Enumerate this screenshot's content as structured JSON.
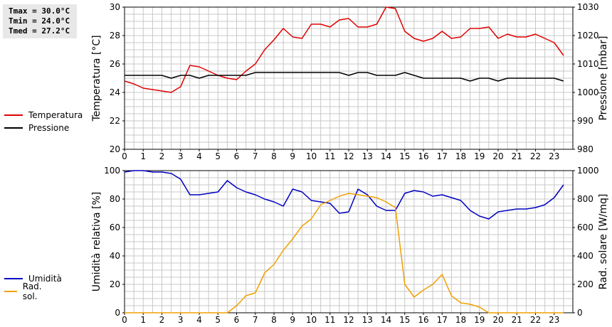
{
  "stats": {
    "tmax": "Tmax = 30.0°C",
    "tmin": "Tmin = 24.0°C",
    "tmed": "Tmed = 27.2°C"
  },
  "colors": {
    "temperature": "#e00000",
    "pressure": "#000000",
    "humidity": "#0000c0",
    "solar": "#f0a000",
    "grid": "#c8c8c8"
  },
  "chart_data": [
    {
      "type": "line",
      "x": [
        0,
        0.5,
        1,
        1.5,
        2,
        2.5,
        3,
        3.5,
        4,
        4.5,
        5,
        5.5,
        6,
        6.5,
        7,
        7.5,
        8,
        8.5,
        9,
        9.5,
        10,
        10.5,
        11,
        11.5,
        12,
        12.5,
        13,
        13.5,
        14,
        14.5,
        15,
        15.5,
        16,
        16.5,
        17,
        17.5,
        18,
        18.5,
        19,
        19.5,
        20,
        20.5,
        21,
        21.5,
        22,
        22.5,
        23,
        23.5
      ],
      "xticks": [
        "0",
        "1",
        "2",
        "3",
        "4",
        "5",
        "6",
        "7",
        "8",
        "9",
        "10",
        "11",
        "12",
        "13",
        "14",
        "15",
        "16",
        "17",
        "18",
        "19",
        "20",
        "21",
        "22",
        "23"
      ],
      "xlim": [
        0,
        24
      ],
      "ylabel_left": "Temperatura [°C]",
      "ylabel_right": "Pressione [mbar]",
      "ylim_left": [
        20,
        30
      ],
      "ylim_right": [
        980,
        1030
      ],
      "yticks_left": [
        "20",
        "22",
        "24",
        "26",
        "28",
        "30"
      ],
      "yticks_right": [
        "980",
        "990",
        "1000",
        "1010",
        "1020",
        "1030"
      ],
      "grid": true,
      "legend_position": "left",
      "series": [
        {
          "name": "Temperatura",
          "axis": "left",
          "values": [
            24.8,
            24.6,
            24.3,
            24.2,
            24.1,
            24.0,
            24.4,
            25.9,
            25.8,
            25.5,
            25.2,
            25.0,
            24.9,
            25.5,
            26.0,
            27.0,
            27.7,
            28.5,
            27.9,
            27.8,
            28.8,
            28.8,
            28.6,
            29.1,
            29.2,
            28.6,
            28.6,
            28.8,
            30.0,
            29.9,
            28.3,
            27.8,
            27.6,
            27.8,
            28.3,
            27.8,
            27.9,
            28.5,
            28.5,
            28.6,
            27.8,
            28.1,
            27.9,
            27.9,
            28.1,
            27.8,
            27.5,
            26.6
          ]
        },
        {
          "name": "Pressione",
          "axis": "right",
          "values": [
            1006,
            1006,
            1006,
            1006,
            1006,
            1005,
            1006,
            1006,
            1005,
            1006,
            1006,
            1006,
            1006,
            1006,
            1007,
            1007,
            1007,
            1007,
            1007,
            1007,
            1007,
            1007,
            1007,
            1007,
            1006,
            1007,
            1007,
            1006,
            1006,
            1006,
            1007,
            1006,
            1005,
            1005,
            1005,
            1005,
            1005,
            1004,
            1005,
            1005,
            1004,
            1005,
            1005,
            1005,
            1005,
            1005,
            1005,
            1004
          ]
        }
      ]
    },
    {
      "type": "line",
      "x": [
        0,
        0.5,
        1,
        1.5,
        2,
        2.5,
        3,
        3.5,
        4,
        4.5,
        5,
        5.5,
        6,
        6.5,
        7,
        7.5,
        8,
        8.5,
        9,
        9.5,
        10,
        10.5,
        11,
        11.5,
        12,
        12.5,
        13,
        13.5,
        14,
        14.5,
        15,
        15.5,
        16,
        16.5,
        17,
        17.5,
        18,
        18.5,
        19,
        19.5,
        20,
        20.5,
        21,
        21.5,
        22,
        22.5,
        23,
        23.5
      ],
      "xticks": [
        "0",
        "1",
        "2",
        "3",
        "4",
        "5",
        "6",
        "7",
        "8",
        "9",
        "10",
        "11",
        "12",
        "13",
        "14",
        "15",
        "16",
        "17",
        "18",
        "19",
        "20",
        "21",
        "22",
        "23"
      ],
      "xlim": [
        0,
        24
      ],
      "ylabel_left": "Umidità relativa [%]",
      "ylabel_right": "Rad. solare [W/mq]",
      "ylim_left": [
        0,
        100
      ],
      "ylim_right": [
        0,
        1000
      ],
      "yticks_left": [
        "0",
        "20",
        "40",
        "60",
        "80",
        "100"
      ],
      "yticks_right": [
        "0",
        "200",
        "400",
        "600",
        "800",
        "1000"
      ],
      "grid": true,
      "legend_position": "left",
      "series": [
        {
          "name": "Umidità",
          "axis": "left",
          "values": [
            99,
            100,
            100,
            99,
            99,
            98,
            94,
            83,
            83,
            84,
            85,
            93,
            88,
            85,
            83,
            80,
            78,
            75,
            87,
            85,
            79,
            78,
            77,
            70,
            71,
            87,
            83,
            75,
            72,
            72,
            84,
            86,
            85,
            82,
            83,
            81,
            79,
            72,
            68,
            66,
            71,
            72,
            73,
            73,
            74,
            76,
            81,
            90
          ]
        },
        {
          "name": "Rad. sol.",
          "axis": "right",
          "values": [
            0,
            0,
            0,
            0,
            0,
            0,
            0,
            0,
            0,
            0,
            0,
            0,
            50,
            120,
            140,
            280,
            340,
            440,
            520,
            610,
            660,
            760,
            790,
            820,
            840,
            830,
            820,
            810,
            780,
            740,
            200,
            110,
            160,
            200,
            270,
            120,
            70,
            60,
            40,
            0,
            0,
            0,
            0,
            0,
            0,
            0,
            0,
            0
          ]
        }
      ]
    }
  ]
}
